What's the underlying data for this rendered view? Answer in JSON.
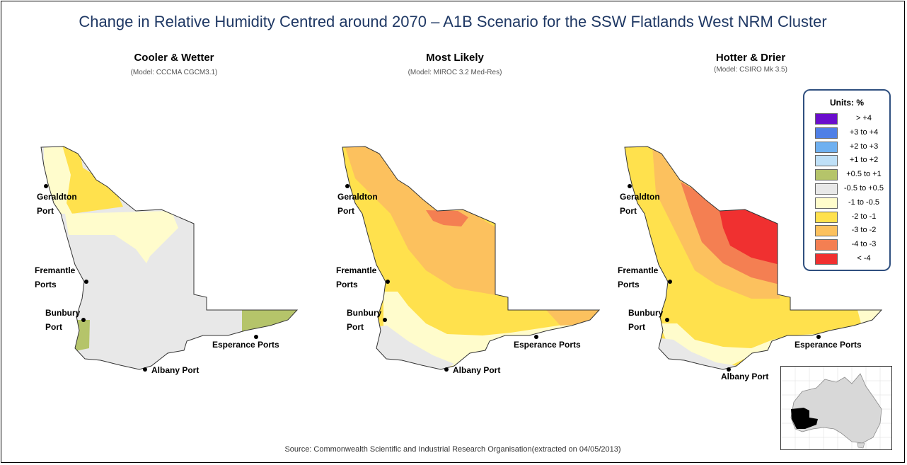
{
  "title": "Change in Relative Humidity Centred around 2070 – A1B Scenario for the SSW Flatlands West NRM Cluster",
  "panels": [
    {
      "title": "Cooler & Wetter",
      "model": "(Model: CCCMA CGCM3.1)"
    },
    {
      "title": "Most Likely",
      "model": "(Model: MIROC 3.2 Med-Res)"
    },
    {
      "title": "Hotter & Drier",
      "model": "(Model: CSIRO Mk 3.5)"
    }
  ],
  "ports": {
    "geraldton": [
      "Geraldton",
      "Port"
    ],
    "fremantle": [
      "Fremantle",
      "Ports"
    ],
    "bunbury": [
      "Bunbury",
      "Port"
    ],
    "esperance": "Esperance Ports",
    "albany": "Albany Port"
  },
  "legend": {
    "title": "Units: %",
    "items": [
      {
        "label": "> +4",
        "color": "#6a0dcc"
      },
      {
        "label": "+3 to +4",
        "color": "#4f7fe6"
      },
      {
        "label": "+2 to +3",
        "color": "#6fb0f0"
      },
      {
        "label": "+1 to +2",
        "color": "#bfe0f7"
      },
      {
        "label": "+0.5 to +1",
        "color": "#b5c46a"
      },
      {
        "label": "-0.5 to +0.5",
        "color": "#e8e8e8"
      },
      {
        "label": "-1 to -0.5",
        "color": "#fffccc"
      },
      {
        "label": "-2 to -1",
        "color": "#ffe14d"
      },
      {
        "label": "-3 to -2",
        "color": "#fcc15e"
      },
      {
        "label": "-4 to -3",
        "color": "#f47f52"
      },
      {
        "label": "< -4",
        "color": "#f03030"
      }
    ]
  },
  "source": "Source: Commonwealth Scientific and Industrial Research Organisation(extracted on 04/05/2013)"
}
